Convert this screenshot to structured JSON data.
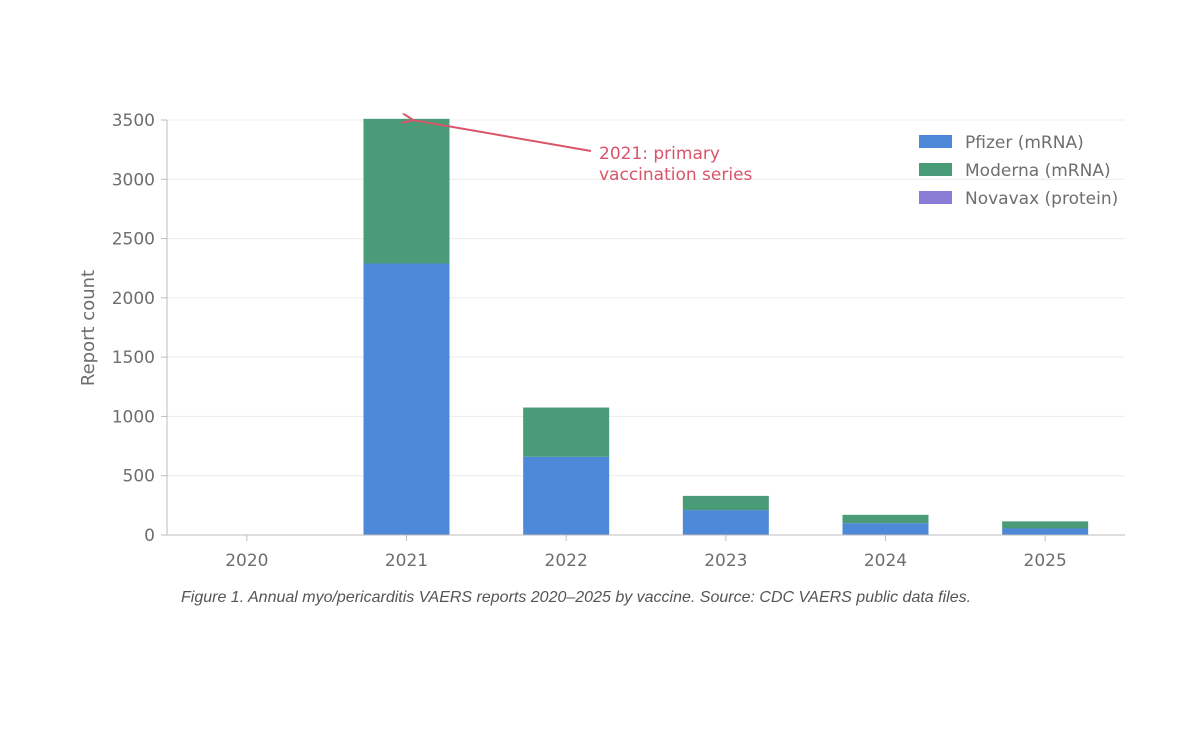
{
  "chart_data": {
    "type": "bar",
    "stacked": true,
    "categories": [
      "2020",
      "2021",
      "2022",
      "2023",
      "2024",
      "2025"
    ],
    "series": [
      {
        "name": "Pfizer (mRNA)",
        "color": "#4e88d9",
        "values": [
          0,
          2290,
          660,
          210,
          100,
          55
        ]
      },
      {
        "name": "Moderna (mRNA)",
        "color": "#4a9b78",
        "values": [
          0,
          1220,
          415,
          120,
          70,
          60
        ]
      },
      {
        "name": "Novavax (protein)",
        "color": "#8a7bd6",
        "values": [
          0,
          0,
          0,
          0,
          0,
          0
        ]
      }
    ],
    "ylabel": "Report count",
    "xlabel": "",
    "ylim": [
      0,
      3500
    ],
    "yticks": [
      "0",
      "500",
      "1000",
      "1500",
      "2000",
      "2500",
      "3000",
      "3500"
    ],
    "grid": true,
    "legend_position": "top-right",
    "annotation": {
      "lines": [
        "2021: primary",
        "vaccination series"
      ],
      "color": "#d9546a",
      "target_category": "2021",
      "target_value": 3510
    }
  },
  "caption": "Figure 1. Annual myo/pericarditis VAERS reports 2020–2025 by vaccine. Source: CDC VAERS public data files."
}
